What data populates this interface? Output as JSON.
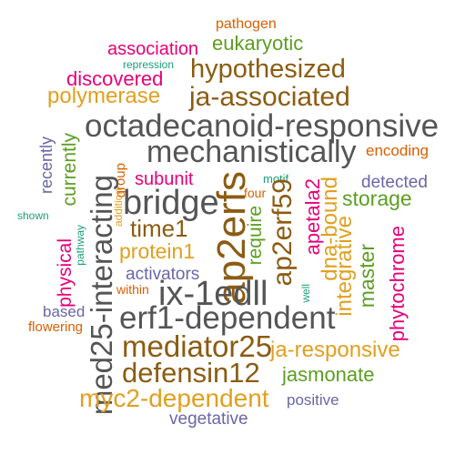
{
  "colors": {
    "gray": "#555555",
    "brown": "#8c5c12",
    "gold": "#e0a020",
    "green": "#5c9e22",
    "magenta": "#e6007a",
    "purple": "#6a66a8",
    "orange": "#d95f02",
    "teal": "#1b9e77"
  },
  "words": {
    "pathogen": "pathogen",
    "association": "association",
    "eukaryotic": "eukaryotic",
    "repression": "repression",
    "hypothesized": "hypothesized",
    "discovered": "discovered",
    "polymerase": "polymerase",
    "ja_associated": "ja-associated",
    "octadecanoid_responsive": "octadecanoid-responsive",
    "mechanistically": "mechanistically",
    "recently": "recently",
    "currently": "currently",
    "group": "group",
    "encoding": "encoding",
    "subunit": "subunit",
    "motif": "motif",
    "detected": "detected",
    "bridge": "bridge",
    "ap2erfs": "ap2erfs",
    "four": "four",
    "storage": "storage",
    "shown": "shown",
    "addition": "addition",
    "med25_interacting": "med25-interacting",
    "time1": "time1",
    "require": "require",
    "ap2erf59": "ap2erf59",
    "apetala2": "apetala2",
    "dna_bound": "dna-bound",
    "physical": "physical",
    "pathway": "pathway",
    "protein1": "protein1",
    "integrative": "integrative",
    "master": "master",
    "phytochrome": "phytochrome",
    "activators": "activators",
    "within": "within",
    "ix_1edll": "ix-1edll",
    "well": "well",
    "based": "based",
    "flowering": "flowering",
    "erf1_dependent": "erf1-dependent",
    "mediator25": "mediator25",
    "ja_responsive": "ja-responsive",
    "defensin12": "defensin12",
    "jasmonate": "jasmonate",
    "myc2_dependent": "myc2-dependent",
    "positive": "positive",
    "vegetative": "vegetative"
  }
}
